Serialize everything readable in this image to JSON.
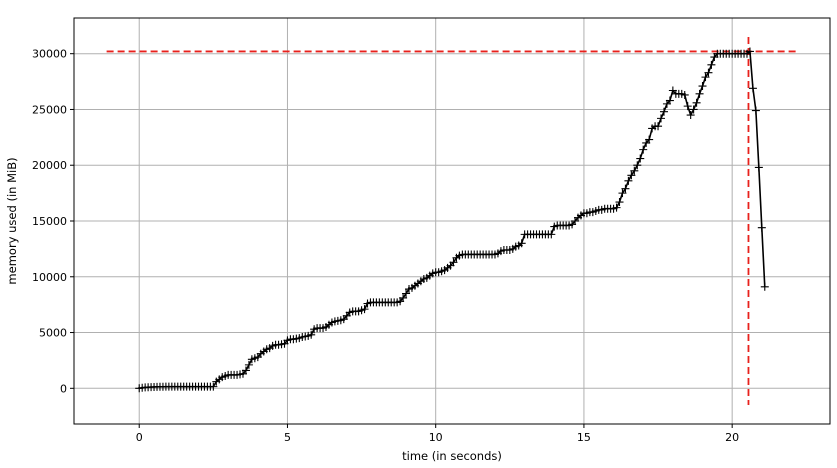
{
  "chart_data": {
    "type": "line",
    "title": "",
    "xlabel": "time (in seconds)",
    "ylabel": "memory used (in MiB)",
    "xlim": [
      -2.2,
      23.3
    ],
    "ylim": [
      -3200,
      33200
    ],
    "xticks": [
      0,
      5,
      10,
      15,
      20
    ],
    "yticks": [
      0,
      5000,
      10000,
      15000,
      20000,
      25000,
      30000
    ],
    "grid": true,
    "legend": "none",
    "colors": {
      "series": "#000000",
      "marker": "#000000",
      "reference": "#e8211c",
      "grid": "#b0b0b0"
    },
    "series": [
      {
        "marker": "+",
        "x": [
          0.0,
          0.1,
          0.2,
          0.3,
          0.4,
          0.5,
          0.6,
          0.7,
          0.8,
          0.9,
          1.0,
          1.1,
          1.2,
          1.3,
          1.4,
          1.5,
          1.6,
          1.7,
          1.8,
          1.9,
          2.0,
          2.1,
          2.2,
          2.3,
          2.4,
          2.5,
          2.6,
          2.7,
          2.8,
          2.9,
          3.0,
          3.1,
          3.2,
          3.3,
          3.4,
          3.5,
          3.6,
          3.7,
          3.8,
          3.9,
          4.0,
          4.1,
          4.2,
          4.3,
          4.4,
          4.5,
          4.6,
          4.7,
          4.8,
          4.9,
          5.0,
          5.1,
          5.2,
          5.3,
          5.4,
          5.5,
          5.6,
          5.7,
          5.8,
          5.9,
          6.0,
          6.1,
          6.2,
          6.3,
          6.4,
          6.5,
          6.6,
          6.7,
          6.8,
          6.9,
          7.0,
          7.1,
          7.2,
          7.3,
          7.4,
          7.5,
          7.6,
          7.7,
          7.8,
          7.9,
          8.0,
          8.1,
          8.2,
          8.3,
          8.4,
          8.5,
          8.6,
          8.7,
          8.8,
          8.9,
          9.0,
          9.1,
          9.2,
          9.3,
          9.4,
          9.5,
          9.6,
          9.7,
          9.8,
          9.9,
          10.0,
          10.1,
          10.2,
          10.3,
          10.4,
          10.5,
          10.6,
          10.7,
          10.8,
          10.9,
          11.0,
          11.1,
          11.2,
          11.3,
          11.4,
          11.5,
          11.6,
          11.7,
          11.8,
          11.9,
          12.0,
          12.1,
          12.2,
          12.3,
          12.4,
          12.5,
          12.6,
          12.7,
          12.8,
          12.9,
          13.0,
          13.1,
          13.2,
          13.3,
          13.4,
          13.5,
          13.6,
          13.7,
          13.8,
          13.9,
          14.0,
          14.1,
          14.2,
          14.3,
          14.4,
          14.5,
          14.6,
          14.7,
          14.8,
          14.9,
          15.0,
          15.1,
          15.2,
          15.3,
          15.4,
          15.5,
          15.6,
          15.7,
          15.8,
          15.9,
          16.0,
          16.1,
          16.2,
          16.3,
          16.4,
          16.5,
          16.6,
          16.7,
          16.8,
          16.9,
          17.0,
          17.1,
          17.2,
          17.3,
          17.4,
          17.5,
          17.6,
          17.7,
          17.8,
          17.9,
          18.0,
          18.1,
          18.2,
          18.3,
          18.4,
          18.5,
          18.6,
          18.7,
          18.8,
          18.9,
          19.0,
          19.1,
          19.2,
          19.3,
          19.4,
          19.5,
          19.6,
          19.7,
          19.8,
          19.9,
          20.0,
          20.1,
          20.2,
          20.3,
          20.4,
          20.5,
          20.6,
          20.7,
          20.8,
          20.9,
          21.0,
          21.1
        ],
        "y": [
          0,
          50,
          80,
          100,
          110,
          120,
          130,
          140,
          140,
          150,
          150,
          150,
          150,
          150,
          150,
          150,
          150,
          150,
          150,
          150,
          150,
          150,
          150,
          150,
          150,
          150,
          600,
          800,
          1000,
          1100,
          1200,
          1200,
          1200,
          1200,
          1250,
          1300,
          1600,
          2100,
          2600,
          2700,
          2800,
          3100,
          3300,
          3500,
          3600,
          3800,
          3900,
          3900,
          3950,
          4000,
          4300,
          4400,
          4400,
          4450,
          4500,
          4600,
          4650,
          4700,
          4800,
          5300,
          5400,
          5400,
          5400,
          5500,
          5700,
          5900,
          6000,
          6050,
          6100,
          6200,
          6500,
          6800,
          6900,
          6900,
          6900,
          7000,
          7100,
          7600,
          7700,
          7700,
          7700,
          7700,
          7700,
          7700,
          7700,
          7700,
          7700,
          7700,
          7800,
          8100,
          8500,
          8900,
          9000,
          9200,
          9400,
          9600,
          9800,
          9900,
          10100,
          10300,
          10400,
          10400,
          10500,
          10600,
          10800,
          11000,
          11300,
          11700,
          11900,
          12000,
          12000,
          12000,
          12000,
          12000,
          12000,
          12000,
          12000,
          12000,
          12000,
          12000,
          12000,
          12100,
          12300,
          12400,
          12400,
          12400,
          12500,
          12700,
          12800,
          13000,
          13800,
          13800,
          13800,
          13800,
          13800,
          13800,
          13800,
          13800,
          13800,
          13800,
          14500,
          14600,
          14600,
          14600,
          14600,
          14600,
          14700,
          15000,
          15300,
          15500,
          15700,
          15700,
          15800,
          15800,
          15900,
          16000,
          16000,
          16100,
          16100,
          16100,
          16100,
          16200,
          16700,
          17500,
          17900,
          18600,
          19100,
          19500,
          20000,
          20600,
          21400,
          22000,
          22300,
          23300,
          23500,
          23500,
          24200,
          24800,
          25500,
          25800,
          26700,
          26400,
          26400,
          26400,
          26300,
          25300,
          24500,
          25000,
          25600,
          26400,
          27100,
          27900,
          28300,
          29000,
          29700,
          30000,
          30000,
          30000,
          30000,
          30000,
          30000,
          30000,
          30000,
          30000,
          30000,
          30000,
          30200,
          26900,
          24900,
          19800,
          14400,
          9100
        ]
      }
    ],
    "reference_lines": [
      {
        "orientation": "horizontal",
        "value": 30200,
        "from": -1.1,
        "to": 22.2,
        "style": "dashed"
      },
      {
        "orientation": "vertical",
        "value": 20.55,
        "from": -1500,
        "to": 31500,
        "style": "dashed"
      }
    ]
  }
}
